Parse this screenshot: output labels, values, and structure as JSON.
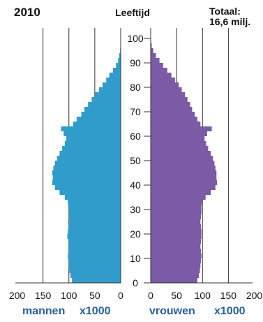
{
  "header": {
    "year": "2010",
    "axis_title": "Leeftijd",
    "total_line1": "Totaal:",
    "total_line2": "16,6 milj."
  },
  "footer": {
    "men_label": "mannen",
    "men_unit": "x1000",
    "women_label": "vrouwen",
    "women_unit": "x1000"
  },
  "colors": {
    "men": "#2f9ccb",
    "women": "#7b5aa6",
    "grid": "#333333",
    "label": "#2a5f9e"
  },
  "chart_data": {
    "type": "bar",
    "orientation": "horizontal-population-pyramid",
    "age_ticks": [
      0,
      10,
      20,
      30,
      40,
      50,
      60,
      70,
      80,
      90,
      100
    ],
    "x_ticks_men": [
      200,
      150,
      100,
      50,
      0
    ],
    "x_ticks_women": [
      0,
      50,
      100,
      150,
      200
    ],
    "xlim": [
      0,
      200
    ],
    "ylim": [
      0,
      100
    ],
    "grid": true,
    "series": [
      {
        "name": "mannen",
        "side": "left",
        "values": [
          {
            "age": 0,
            "value": 94
          },
          {
            "age": 2,
            "value": 97
          },
          {
            "age": 4,
            "value": 99
          },
          {
            "age": 6,
            "value": 100
          },
          {
            "age": 8,
            "value": 101
          },
          {
            "age": 10,
            "value": 102
          },
          {
            "age": 12,
            "value": 101
          },
          {
            "age": 14,
            "value": 100
          },
          {
            "age": 16,
            "value": 101
          },
          {
            "age": 18,
            "value": 103
          },
          {
            "age": 20,
            "value": 102
          },
          {
            "age": 22,
            "value": 101
          },
          {
            "age": 24,
            "value": 99
          },
          {
            "age": 26,
            "value": 100
          },
          {
            "age": 28,
            "value": 100
          },
          {
            "age": 30,
            "value": 100
          },
          {
            "age": 32,
            "value": 102
          },
          {
            "age": 34,
            "value": 108
          },
          {
            "age": 36,
            "value": 118
          },
          {
            "age": 38,
            "value": 127
          },
          {
            "age": 40,
            "value": 132
          },
          {
            "age": 42,
            "value": 131
          },
          {
            "age": 44,
            "value": 132
          },
          {
            "age": 46,
            "value": 130
          },
          {
            "age": 48,
            "value": 127
          },
          {
            "age": 50,
            "value": 123
          },
          {
            "age": 52,
            "value": 118
          },
          {
            "age": 54,
            "value": 113
          },
          {
            "age": 56,
            "value": 108
          },
          {
            "age": 58,
            "value": 105
          },
          {
            "age": 60,
            "value": 110
          },
          {
            "age": 62,
            "value": 115
          },
          {
            "age": 64,
            "value": 92
          },
          {
            "age": 66,
            "value": 85
          },
          {
            "age": 68,
            "value": 76
          },
          {
            "age": 70,
            "value": 70
          },
          {
            "age": 72,
            "value": 63
          },
          {
            "age": 74,
            "value": 56
          },
          {
            "age": 76,
            "value": 49
          },
          {
            "age": 78,
            "value": 42
          },
          {
            "age": 80,
            "value": 35
          },
          {
            "age": 82,
            "value": 28
          },
          {
            "age": 84,
            "value": 22
          },
          {
            "age": 86,
            "value": 15
          },
          {
            "age": 88,
            "value": 9
          },
          {
            "age": 90,
            "value": 5
          },
          {
            "age": 92,
            "value": 3
          },
          {
            "age": 94,
            "value": 1
          },
          {
            "age": 96,
            "value": 0.5
          },
          {
            "age": 98,
            "value": 0.2
          }
        ]
      },
      {
        "name": "vrouwen",
        "side": "right",
        "values": [
          {
            "age": 0,
            "value": 90
          },
          {
            "age": 2,
            "value": 93
          },
          {
            "age": 4,
            "value": 95
          },
          {
            "age": 6,
            "value": 96
          },
          {
            "age": 8,
            "value": 97
          },
          {
            "age": 10,
            "value": 98
          },
          {
            "age": 12,
            "value": 97
          },
          {
            "age": 14,
            "value": 96
          },
          {
            "age": 16,
            "value": 97
          },
          {
            "age": 18,
            "value": 98
          },
          {
            "age": 20,
            "value": 98
          },
          {
            "age": 22,
            "value": 97
          },
          {
            "age": 24,
            "value": 96
          },
          {
            "age": 26,
            "value": 97
          },
          {
            "age": 28,
            "value": 98
          },
          {
            "age": 30,
            "value": 98
          },
          {
            "age": 32,
            "value": 100
          },
          {
            "age": 34,
            "value": 106
          },
          {
            "age": 36,
            "value": 116
          },
          {
            "age": 38,
            "value": 125
          },
          {
            "age": 40,
            "value": 128
          },
          {
            "age": 42,
            "value": 127
          },
          {
            "age": 44,
            "value": 127
          },
          {
            "age": 46,
            "value": 125
          },
          {
            "age": 48,
            "value": 123
          },
          {
            "age": 50,
            "value": 120
          },
          {
            "age": 52,
            "value": 116
          },
          {
            "age": 54,
            "value": 111
          },
          {
            "age": 56,
            "value": 107
          },
          {
            "age": 58,
            "value": 104
          },
          {
            "age": 60,
            "value": 109
          },
          {
            "age": 62,
            "value": 118
          },
          {
            "age": 64,
            "value": 96
          },
          {
            "age": 66,
            "value": 90
          },
          {
            "age": 68,
            "value": 85
          },
          {
            "age": 70,
            "value": 80
          },
          {
            "age": 72,
            "value": 76
          },
          {
            "age": 74,
            "value": 71
          },
          {
            "age": 76,
            "value": 66
          },
          {
            "age": 78,
            "value": 60
          },
          {
            "age": 80,
            "value": 54
          },
          {
            "age": 82,
            "value": 47
          },
          {
            "age": 84,
            "value": 40
          },
          {
            "age": 86,
            "value": 32
          },
          {
            "age": 88,
            "value": 24
          },
          {
            "age": 90,
            "value": 17
          },
          {
            "age": 92,
            "value": 10
          },
          {
            "age": 94,
            "value": 5
          },
          {
            "age": 96,
            "value": 2
          },
          {
            "age": 98,
            "value": 0.8
          }
        ]
      }
    ]
  }
}
